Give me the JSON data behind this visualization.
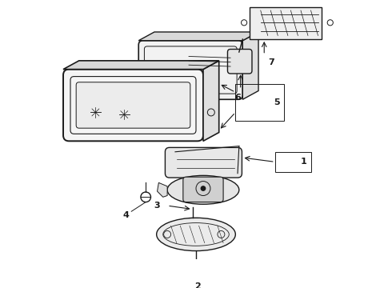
{
  "bg_color": "#ffffff",
  "line_color": "#1a1a1a",
  "fig_width": 4.9,
  "fig_height": 3.6,
  "dpi": 100,
  "label_fontsize": 8,
  "annotation_color": "#1a1a1a"
}
